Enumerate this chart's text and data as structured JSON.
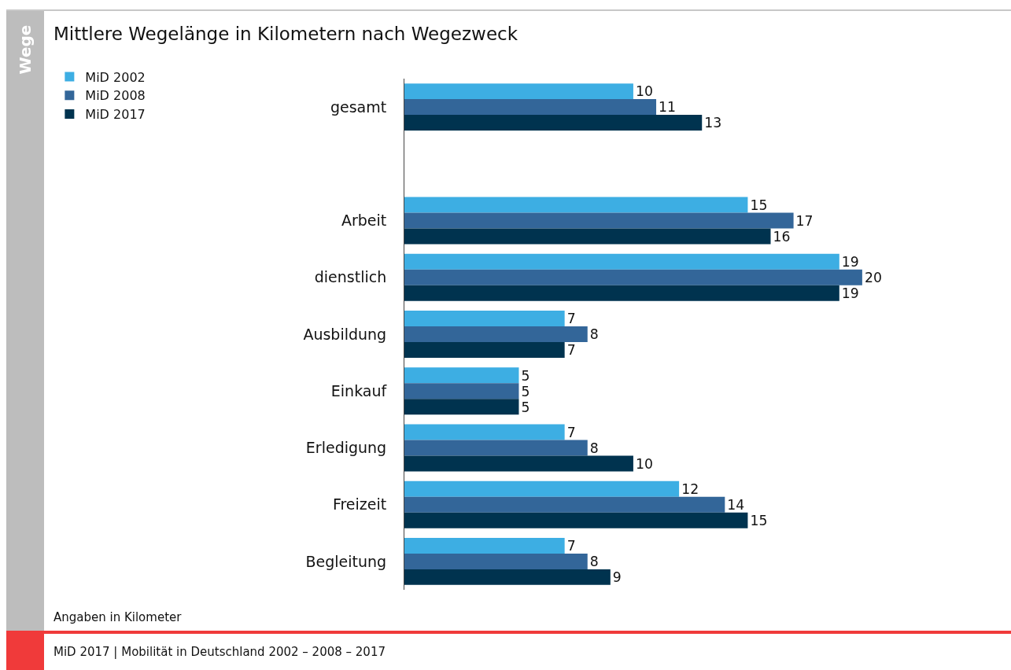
{
  "chart_data": {
    "type": "bar",
    "orientation": "horizontal",
    "title": "Mittlere Wegelänge in Kilometern nach Wegezweck",
    "categories": [
      "gesamt",
      null,
      "Arbeit",
      "dienstlich",
      "Ausbildung",
      "Einkauf",
      "Erledigung",
      "Freizeit",
      "Begleitung"
    ],
    "series": [
      {
        "name": "MiD 2002",
        "color": "#3daee3",
        "values": [
          10,
          null,
          15,
          19,
          7,
          5,
          7,
          12,
          7
        ]
      },
      {
        "name": "MiD 2008",
        "color": "#336699",
        "values": [
          11,
          null,
          17,
          20,
          8,
          5,
          8,
          14,
          8
        ]
      },
      {
        "name": "MiD 2017",
        "color": "#00334f",
        "values": [
          13,
          null,
          16,
          19,
          7,
          5,
          10,
          15,
          9
        ]
      }
    ],
    "xlim": [
      0,
      26.5
    ],
    "tick_labels": "y",
    "data_labels": true,
    "grid": false,
    "legend": "top left",
    "annotations": [
      "Wege",
      "Angaben in Kilometer",
      "MiD 2017 | Mobilität in Deutschland 2002 – 2008 – 2017"
    ]
  }
}
